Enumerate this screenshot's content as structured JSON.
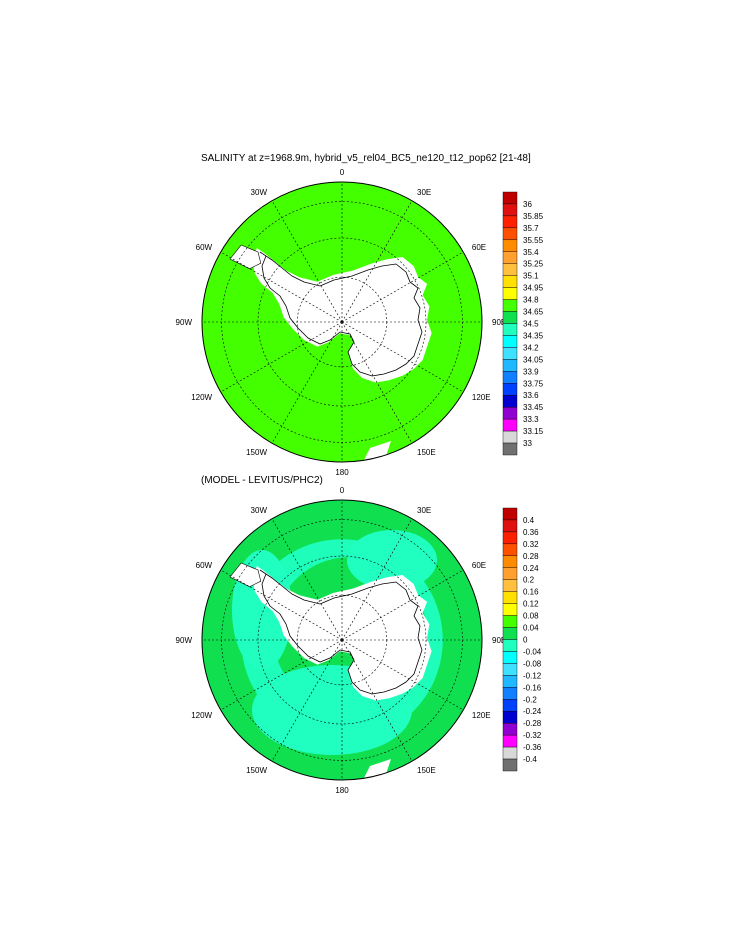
{
  "panels": [
    {
      "title": "SALINITY at z=1968.9m, hybrid_v5_rel04_BC5_ne120_t12_pop62 [21-48]",
      "lon_labels": [
        "0",
        "30E",
        "60E",
        "90E",
        "120E",
        "150E",
        "180",
        "150W",
        "120W",
        "90W",
        "60W",
        "30W"
      ],
      "colorbar": {
        "labels": [
          "36",
          "35.85",
          "35.7",
          "35.55",
          "35.4",
          "35.25",
          "35.1",
          "34.95",
          "34.8",
          "34.65",
          "34.5",
          "34.35",
          "34.2",
          "34.05",
          "33.9",
          "33.75",
          "33.6",
          "33.45",
          "33.3",
          "33.15",
          "33"
        ],
        "colors": [
          "#c00000",
          "#e01010",
          "#ff2000",
          "#ff5000",
          "#ff8c00",
          "#ffa030",
          "#ffc040",
          "#ffe000",
          "#ffff00",
          "#44ff00",
          "#10e050",
          "#20ffc0",
          "#00ffff",
          "#40e0ff",
          "#20b8ff",
          "#1080ff",
          "#0040ff",
          "#0000d0",
          "#9000d0",
          "#ff00ff",
          "#d8d8d8",
          "#707070"
        ]
      },
      "ocean_color": "#44ff00"
    },
    {
      "title": "(MODEL - LEVITUS/PHC2)",
      "lon_labels": [
        "0",
        "30E",
        "60E",
        "90E",
        "120E",
        "150E",
        "180",
        "150W",
        "120W",
        "90W",
        "60W",
        "30W"
      ],
      "colorbar": {
        "labels": [
          "0.4",
          "0.36",
          "0.32",
          "0.28",
          "0.24",
          "0.2",
          "0.16",
          "0.12",
          "0.08",
          "0.04",
          "0",
          "-0.04",
          "-0.08",
          "-0.12",
          "-0.16",
          "-0.2",
          "-0.24",
          "-0.28",
          "-0.32",
          "-0.36",
          "-0.4"
        ],
        "colors": [
          "#c00000",
          "#e01010",
          "#ff2000",
          "#ff5000",
          "#ff8c00",
          "#ffa030",
          "#ffc040",
          "#ffe000",
          "#ffff00",
          "#44ff00",
          "#10e050",
          "#20ffc0",
          "#00ffff",
          "#40e0ff",
          "#20b8ff",
          "#1080ff",
          "#0040ff",
          "#0000d0",
          "#9000d0",
          "#ff00ff",
          "#d8d8d8",
          "#707070"
        ]
      },
      "ocean_color": "#10e050",
      "anomaly_color": "#20ffc0"
    }
  ]
}
